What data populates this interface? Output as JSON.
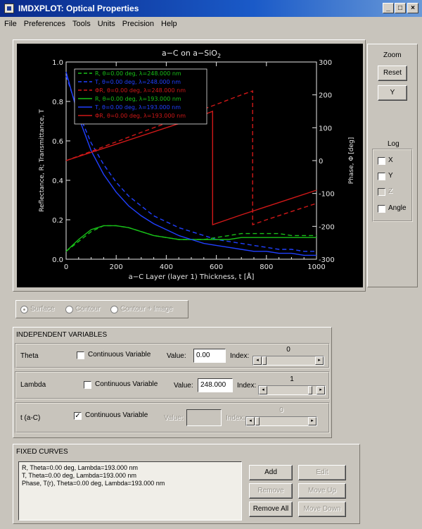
{
  "window": {
    "title": "IMDXPLOT: Optical Properties",
    "controls": [
      "_",
      "□",
      "×"
    ]
  },
  "menu": [
    "File",
    "Preferences",
    "Tools",
    "Units",
    "Precision",
    "Help"
  ],
  "plot": {
    "title": "a-C on a-SiO2",
    "title_parts": [
      "a−C on a−SiO",
      "2"
    ],
    "xlabel": "a−C Layer (layer 1) Thickness, t [Å]",
    "ylabel": "Reflectance, R; Transmittance, T",
    "y2label": "Phase, Φ [deg]",
    "legend": [
      {
        "text": "R, θ=0.00 deg, λ=248.000 nm",
        "color": "#18c018",
        "dash": true
      },
      {
        "text": "T, θ=0.00 deg, λ=248.000 nm",
        "color": "#2040ff",
        "dash": true
      },
      {
        "text": "ΦR, θ=0.00 deg, λ=248.000 nm",
        "color": "#d01818",
        "dash": true
      },
      {
        "text": "R, θ=0.00 deg, λ=193.000 nm",
        "color": "#18c018",
        "dash": false
      },
      {
        "text": "T, θ=0.00 deg, λ=193.000 nm",
        "color": "#2040ff",
        "dash": false
      },
      {
        "text": "ΦR, θ=0.00 deg, λ=193.000 nm",
        "color": "#d01818",
        "dash": false
      }
    ]
  },
  "chart_data": {
    "type": "line",
    "title": "a-C on a-SiO2",
    "xlabel": "a-C Layer (layer 1) Thickness, t [Å]",
    "ylabel": "Reflectance, R; Transmittance, T",
    "y2label": "Phase, Φ [deg]",
    "xlim": [
      0,
      1000
    ],
    "ylim": [
      0.0,
      1.0
    ],
    "y2lim": [
      -300,
      300
    ],
    "xticks": [
      0,
      200,
      400,
      600,
      800,
      1000
    ],
    "yticks": [
      "0.0",
      "0.2",
      "0.4",
      "0.6",
      "0.8",
      "1.0"
    ],
    "y2ticks": [
      300,
      200,
      100,
      0,
      -100,
      -200,
      -300
    ],
    "legend_position": "top-left",
    "series": [
      {
        "name": "R, θ=0.00 deg, λ=248.000 nm",
        "axis": "left",
        "style": "dashed",
        "color": "#18c018",
        "x": [
          0,
          50,
          100,
          150,
          200,
          250,
          300,
          350,
          400,
          450,
          500,
          550,
          600,
          650,
          700,
          750,
          800,
          850,
          900,
          950,
          1000
        ],
        "y": [
          0.04,
          0.09,
          0.14,
          0.17,
          0.17,
          0.16,
          0.14,
          0.12,
          0.11,
          0.1,
          0.1,
          0.1,
          0.11,
          0.12,
          0.13,
          0.13,
          0.13,
          0.13,
          0.12,
          0.12,
          0.12
        ]
      },
      {
        "name": "T, θ=0.00 deg, λ=248.000 nm",
        "axis": "left",
        "style": "dashed",
        "color": "#2040ff",
        "x": [
          0,
          50,
          100,
          150,
          200,
          250,
          300,
          350,
          400,
          450,
          500,
          550,
          600,
          650,
          700,
          750,
          800,
          850,
          900,
          950,
          1000
        ],
        "y": [
          0.93,
          0.74,
          0.59,
          0.48,
          0.39,
          0.32,
          0.27,
          0.22,
          0.19,
          0.16,
          0.14,
          0.12,
          0.1,
          0.09,
          0.08,
          0.07,
          0.06,
          0.05,
          0.05,
          0.04,
          0.04
        ]
      },
      {
        "name": "ΦR, θ=0.00 deg, λ=248.000 nm",
        "axis": "right",
        "style": "dashed",
        "color": "#d01818",
        "x": [
          0,
          100,
          200,
          300,
          400,
          500,
          600,
          700,
          745,
          745,
          800,
          900,
          1000
        ],
        "y": [
          0,
          28,
          57,
          86,
          114,
          143,
          171,
          200,
          212,
          -195,
          -180,
          -155,
          -130
        ]
      },
      {
        "name": "R, θ=0.00 deg, λ=193.000 nm",
        "axis": "left",
        "style": "solid",
        "color": "#18c018",
        "x": [
          0,
          50,
          100,
          150,
          200,
          250,
          300,
          350,
          400,
          450,
          500,
          550,
          600,
          650,
          700,
          750,
          800,
          850,
          900,
          950,
          1000
        ],
        "y": [
          0.04,
          0.1,
          0.15,
          0.17,
          0.17,
          0.16,
          0.14,
          0.12,
          0.11,
          0.1,
          0.1,
          0.1,
          0.1,
          0.1,
          0.11,
          0.11,
          0.11,
          0.11,
          0.11,
          0.11,
          0.11
        ]
      },
      {
        "name": "T, θ=0.00 deg, λ=193.000 nm",
        "axis": "left",
        "style": "solid",
        "color": "#2040ff",
        "x": [
          0,
          50,
          100,
          150,
          200,
          250,
          300,
          350,
          400,
          450,
          500,
          550,
          600,
          650,
          700,
          750,
          800,
          850,
          900,
          950,
          1000
        ],
        "y": [
          0.95,
          0.72,
          0.55,
          0.43,
          0.34,
          0.27,
          0.22,
          0.18,
          0.15,
          0.12,
          0.1,
          0.08,
          0.07,
          0.06,
          0.05,
          0.04,
          0.04,
          0.03,
          0.03,
          0.02,
          0.02
        ]
      },
      {
        "name": "ΦR, θ=0.00 deg, λ=193.000 nm",
        "axis": "right",
        "style": "solid",
        "color": "#d01818",
        "x": [
          0,
          100,
          200,
          300,
          400,
          500,
          585,
          585,
          700,
          800,
          900,
          1000
        ],
        "y": [
          0,
          25,
          50,
          75,
          100,
          125,
          150,
          -195,
          -165,
          -140,
          -115,
          -90
        ]
      }
    ]
  },
  "zoom": {
    "label": "Zoom",
    "reset": "Reset",
    "y": "Y"
  },
  "log": {
    "label": "Log",
    "x": "X",
    "y": "Y",
    "z": "Z",
    "angle": "Angle",
    "x_checked": "",
    "y_checked": "",
    "z_checked": "",
    "angle_checked": ""
  },
  "surface_modes": {
    "surface": "Surface",
    "contour": "Contour",
    "contour_image": "Contour + Image"
  },
  "independent": {
    "header": "INDEPENDENT VARIABLES",
    "continuous_label": "Continuous Variable",
    "value_label": "Value:",
    "index_label": "Index:",
    "rows": [
      {
        "name": "Theta",
        "checked": "",
        "value": "0.00",
        "index": "0"
      },
      {
        "name": "Lambda",
        "checked": "",
        "value": "248.000",
        "index": "1"
      },
      {
        "name": "t (a-C)",
        "checked": "✓",
        "value": "",
        "index": "0"
      }
    ]
  },
  "fixed": {
    "header": "FIXED CURVES",
    "items": [
      "R, Theta=0.00 deg, Lambda=193.000 nm",
      "T, Theta=0.00 deg, Lambda=193.000 nm",
      "Phase, T(r), Theta=0.00 deg, Lambda=193.000 nm"
    ],
    "add": "Add",
    "edit": "Edit",
    "remove": "Remove",
    "move_up": "Move Up",
    "remove_all": "Remove All",
    "move_down": "Move Down"
  }
}
